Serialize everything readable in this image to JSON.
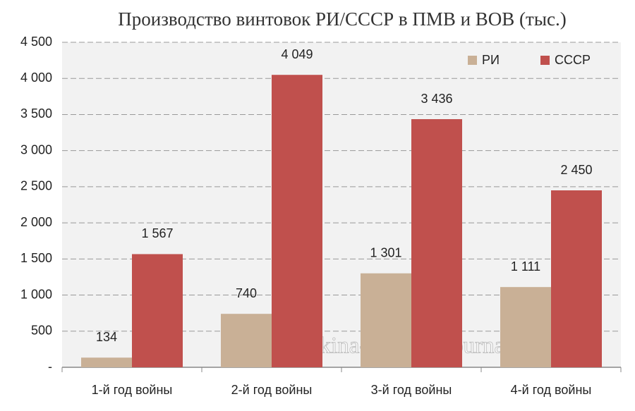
{
  "chart_data": {
    "type": "bar",
    "title": "Производство винтовок РИ/СССР в ПМВ и ВОВ (тыс.)",
    "categories": [
      "1-й год войны",
      "2-й год войны",
      "3-й год войны",
      "4-й год войны"
    ],
    "series": [
      {
        "name": "РИ",
        "color": "#c9b096",
        "values": [
          134,
          740,
          1301,
          1111
        ],
        "value_labels": [
          "134",
          "740",
          "1 301",
          "1 111"
        ]
      },
      {
        "name": "СССР",
        "color": "#c0504d",
        "values": [
          1567,
          4049,
          3436,
          2450
        ],
        "value_labels": [
          "1 567",
          "4 049",
          "3 436",
          "2 450"
        ]
      }
    ],
    "ylim": [
      0,
      4500
    ],
    "yticks": [
      {
        "value": 0,
        "label": "-"
      },
      500,
      {
        "value": 1000,
        "label": "1 000"
      },
      {
        "value": 1500,
        "label": "1 500"
      },
      {
        "value": 2000,
        "label": "2 000"
      },
      {
        "value": 2500,
        "label": "2 500"
      },
      {
        "value": 3000,
        "label": "3 000"
      },
      {
        "value": 3500,
        "label": "3 500"
      },
      {
        "value": 4000,
        "label": "4 000"
      },
      {
        "value": 4500,
        "label": "4 500"
      }
    ],
    "grid": true,
    "legend": "top-right",
    "watermark": "© burckina-new.livejournal.com"
  }
}
